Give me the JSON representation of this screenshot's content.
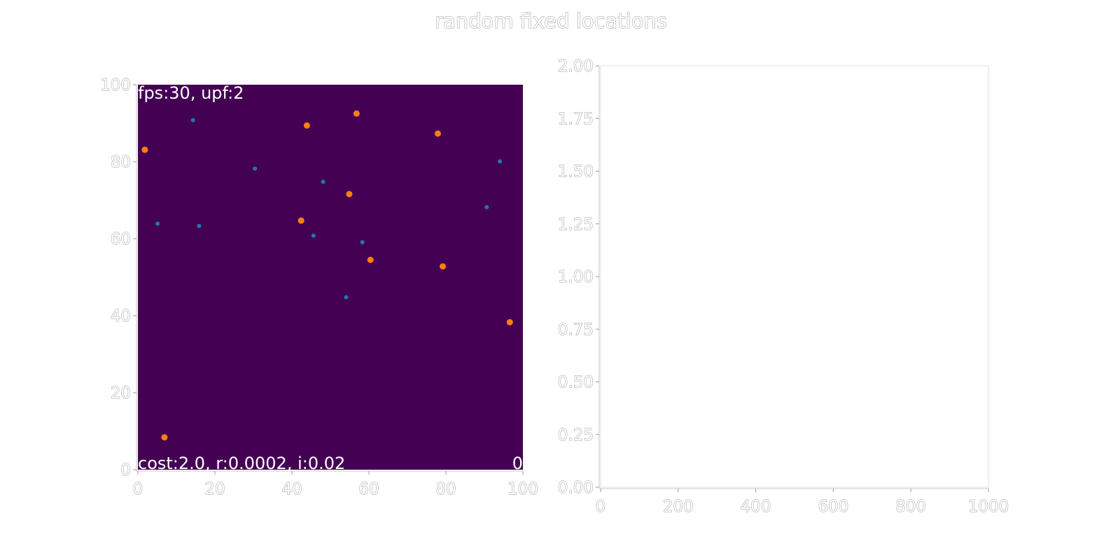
{
  "figure": {
    "title": "random fixed locations"
  },
  "chart_data": [
    {
      "type": "scatter",
      "title": "",
      "xlim": [
        0,
        100
      ],
      "ylim": [
        0,
        100
      ],
      "xticks": [
        "0",
        "20",
        "40",
        "60",
        "80",
        "100"
      ],
      "yticks": [
        "0",
        "20",
        "40",
        "60",
        "80",
        "100"
      ],
      "background_color": "#440154",
      "overlay_text": {
        "top_left": "fps:30, upf:2",
        "bottom_left": "cost:2.0, r:0.0002, i:0.02",
        "bottom_right": "0"
      },
      "series": [
        {
          "color": "#1f77b4",
          "points": [
            [
              14.3,
              90.8
            ],
            [
              30.4,
              78.2
            ],
            [
              48.1,
              74.8
            ],
            [
              5.1,
              63.9
            ],
            [
              15.9,
              63.3
            ],
            [
              45.6,
              60.8
            ],
            [
              58.3,
              59.1
            ],
            [
              54.1,
              44.8
            ],
            [
              90.6,
              68.2
            ],
            [
              94.0,
              80.1
            ]
          ]
        },
        {
          "color": "#ff7f0e",
          "points": [
            [
              1.8,
              83.1
            ],
            [
              43.9,
              89.4
            ],
            [
              56.8,
              92.5
            ],
            [
              77.9,
              87.3
            ],
            [
              54.9,
              71.6
            ],
            [
              42.4,
              64.7
            ],
            [
              60.4,
              54.5
            ],
            [
              79.2,
              52.8
            ],
            [
              96.6,
              38.3
            ],
            [
              6.9,
              8.4
            ]
          ]
        }
      ]
    },
    {
      "type": "line",
      "title": "",
      "xlim": [
        0,
        1000
      ],
      "ylim": [
        0,
        2
      ],
      "xticks": [
        "0",
        "200",
        "400",
        "600",
        "800",
        "1000"
      ],
      "yticks": [
        "0.00",
        "0.25",
        "0.50",
        "0.75",
        "1.00",
        "1.25",
        "1.50",
        "1.75",
        "2.00"
      ],
      "series": []
    }
  ]
}
